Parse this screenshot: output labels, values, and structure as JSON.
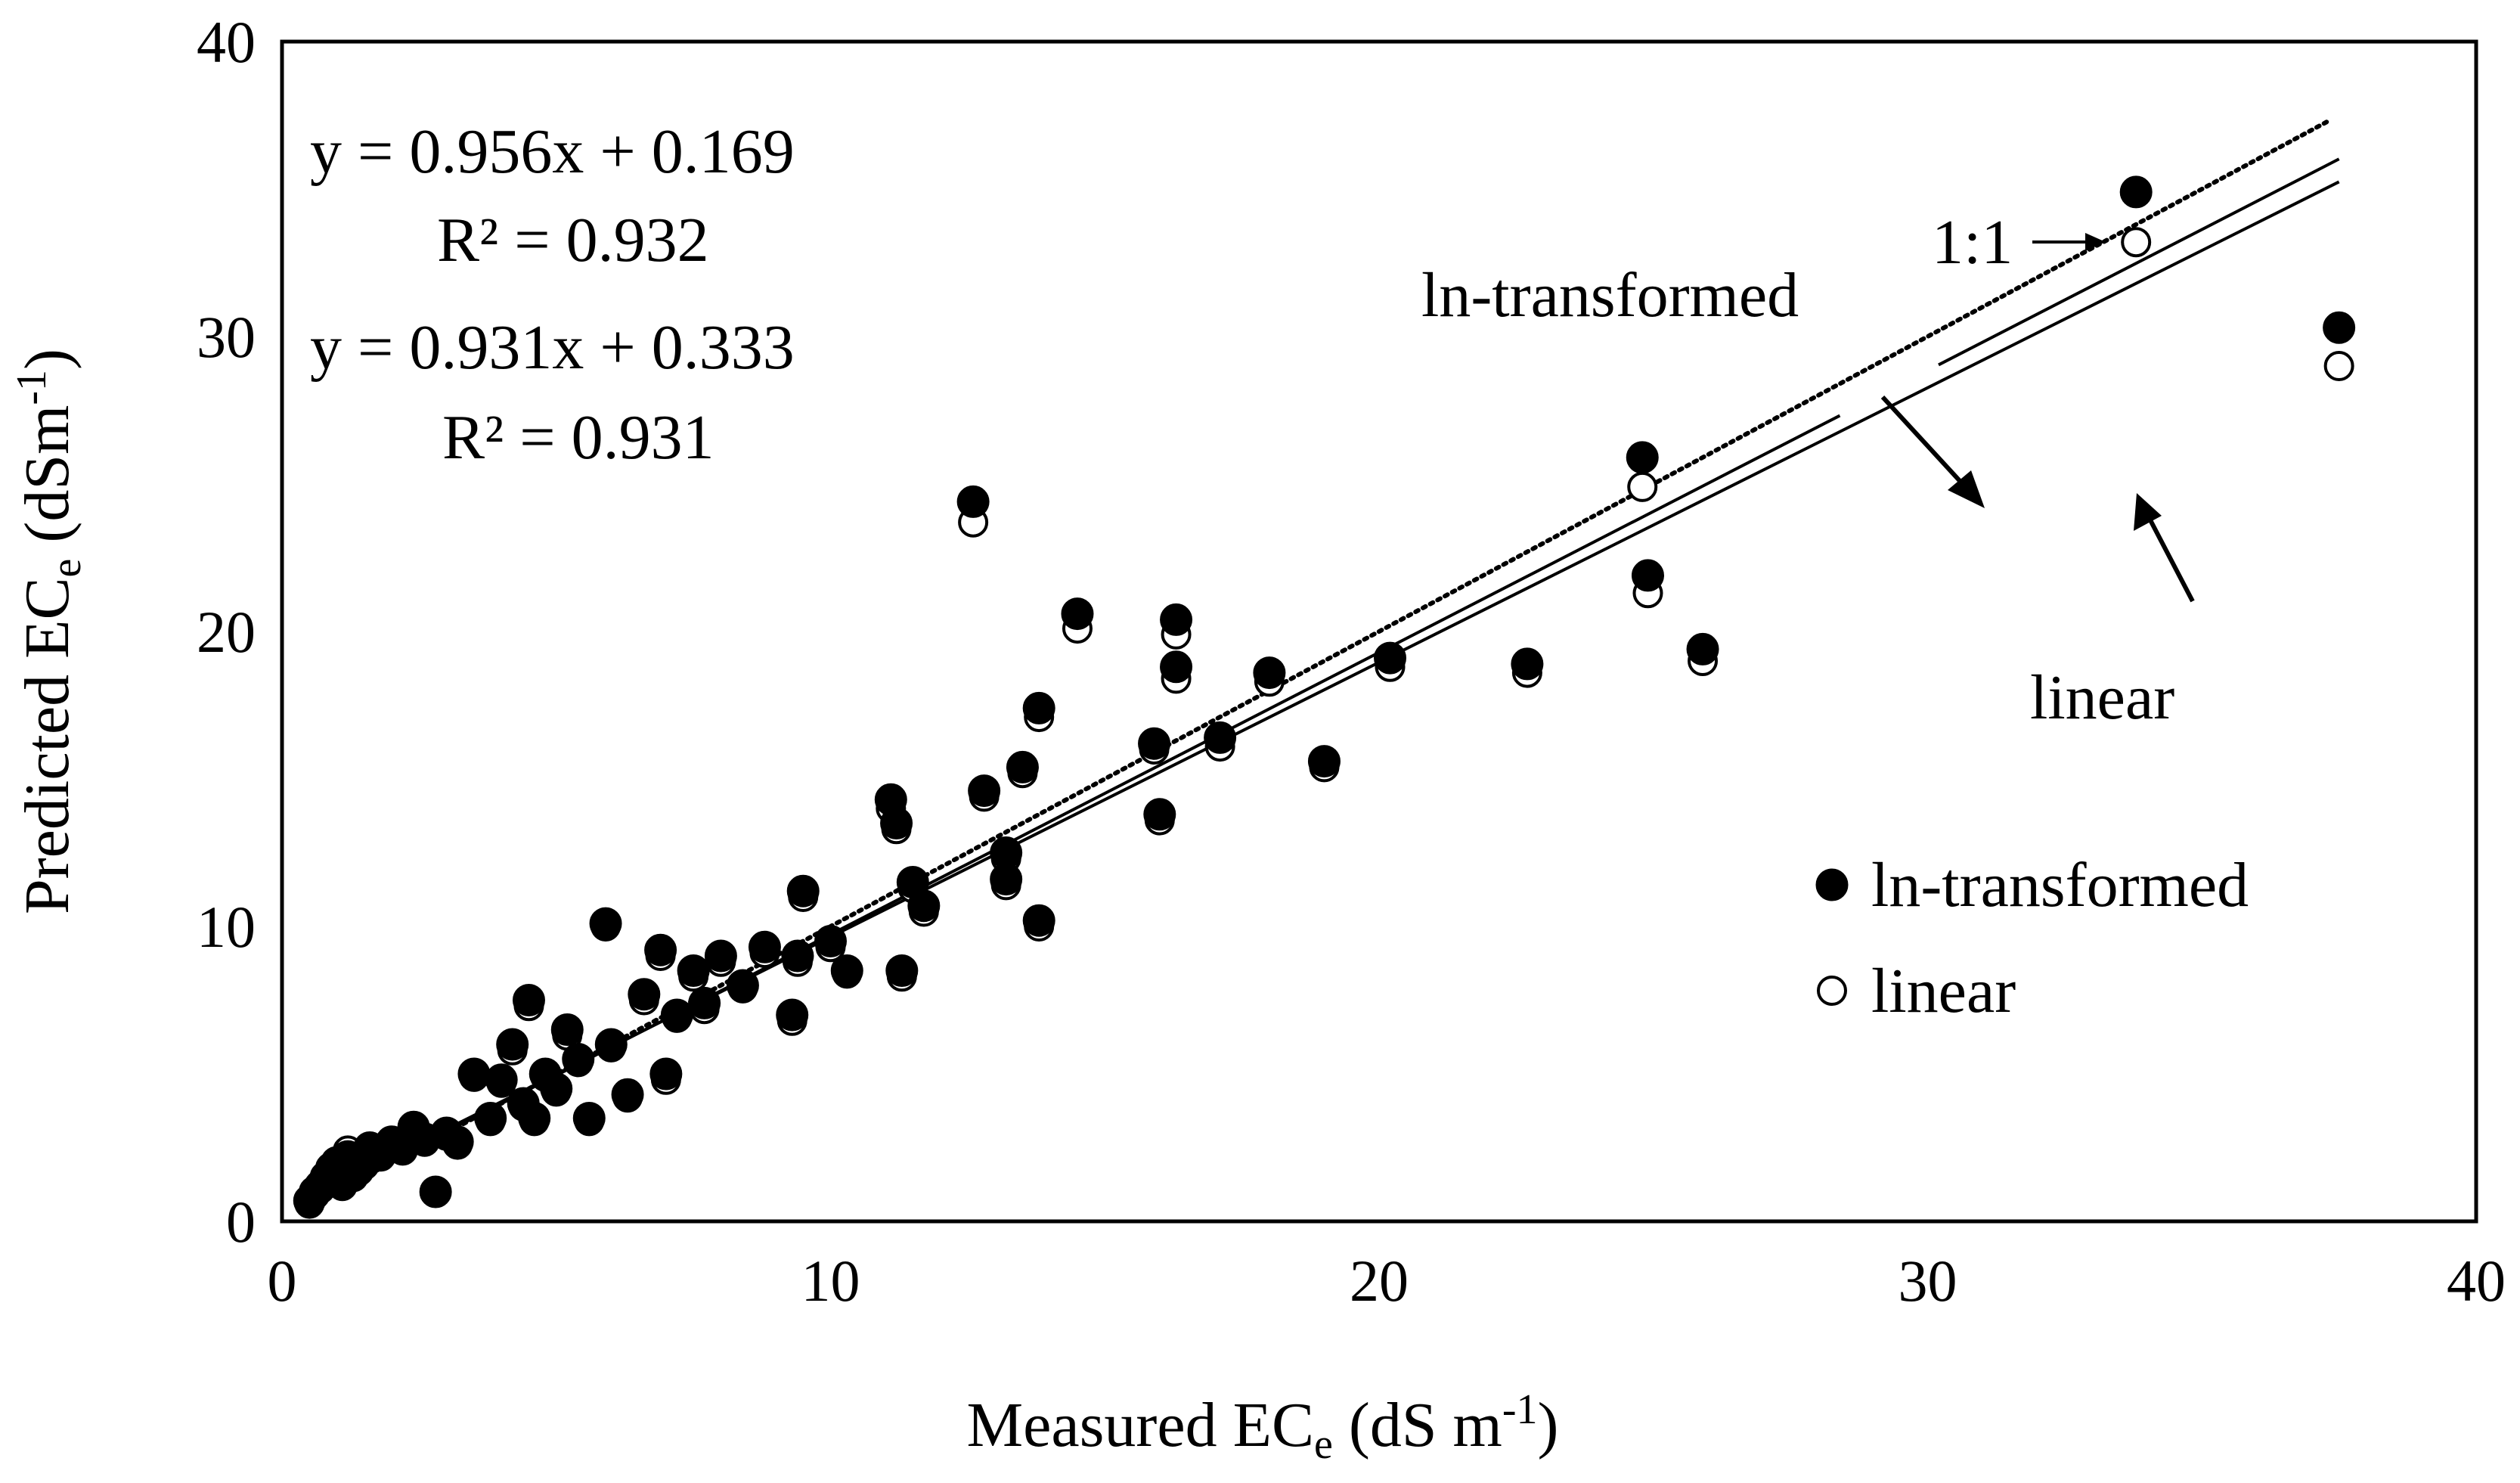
{
  "chart_data": {
    "type": "scatter",
    "xlabel": "Measured EC",
    "xlabel_sub": "e",
    "xlabel_tail": " (dS m",
    "xlabel_sup": "-1",
    "xlabel_close": ")",
    "ylabel": "Predicted EC",
    "ylabel_sub": "e",
    "ylabel_tail": "  (dSm",
    "ylabel_sup": "-1",
    "ylabel_close": ")",
    "xlim": [
      0,
      40
    ],
    "ylim": [
      0,
      40
    ],
    "xticks": [
      "0",
      "10",
      "20",
      "30",
      "40"
    ],
    "yticks": [
      "0",
      "10",
      "20",
      "30",
      "40"
    ],
    "grid": false,
    "legend_position": "lower-right",
    "equations": [
      {
        "line": "y = 0.956x + 0.169",
        "r2": "R² = 0.932"
      },
      {
        "line": "y = 0.931x + 0.333",
        "r2": "R² = 0.931"
      }
    ],
    "annotations": {
      "one_to_one": "1:1",
      "ln_transformed": "ln-transformed",
      "linear": "linear"
    },
    "lines": [
      {
        "name": "1:1",
        "slope": 1.0,
        "intercept": 0,
        "style": "dotted"
      },
      {
        "name": "ln-transformed",
        "slope": 0.956,
        "intercept": 0.169,
        "style": "solid"
      },
      {
        "name": "linear",
        "slope": 0.931,
        "intercept": 0.333,
        "style": "solid"
      }
    ],
    "series": [
      {
        "name": "ln-transformed",
        "marker": "filled-circle",
        "x": [
          0.5,
          0.6,
          0.7,
          0.8,
          0.9,
          1.0,
          1.1,
          1.2,
          1.3,
          1.4,
          1.5,
          1.6,
          1.8,
          2.0,
          2.2,
          2.4,
          2.6,
          2.8,
          3.0,
          3.2,
          3.5,
          3.8,
          4.0,
          4.2,
          4.4,
          4.5,
          4.6,
          4.8,
          5.0,
          5.2,
          5.4,
          5.6,
          5.9,
          6.0,
          6.3,
          6.6,
          6.9,
          7.0,
          7.2,
          7.5,
          7.7,
          8.0,
          8.4,
          8.8,
          9.3,
          9.4,
          9.5,
          10.0,
          10.3,
          11.1,
          11.2,
          11.3,
          11.5,
          11.7,
          12.6,
          12.8,
          13.2,
          13.2,
          13.5,
          13.8,
          13.8,
          14.5,
          15.9,
          16.0,
          16.3,
          16.3,
          17.1,
          18.0,
          19.0,
          20.2,
          22.7,
          24.8,
          24.9,
          25.9,
          33.8,
          37.5
        ],
        "y": [
          0.7,
          1.0,
          1.2,
          1.5,
          1.8,
          2.0,
          1.3,
          2.2,
          1.6,
          1.8,
          2.0,
          2.5,
          2.3,
          2.7,
          2.5,
          3.2,
          2.8,
          1.0,
          3.0,
          2.7,
          5.0,
          3.5,
          4.8,
          6.0,
          4.0,
          7.5,
          3.5,
          5.0,
          4.5,
          6.5,
          5.5,
          3.5,
          10.1,
          6.0,
          4.3,
          7.7,
          9.2,
          5.0,
          7.0,
          8.5,
          7.4,
          9.0,
          8.0,
          9.3,
          7.0,
          9.0,
          11.2,
          9.5,
          8.5,
          14.3,
          13.5,
          8.5,
          11.5,
          10.7,
          24.4,
          14.6,
          12.5,
          11.6,
          15.4,
          17.4,
          10.2,
          20.6,
          16.2,
          13.8,
          20.4,
          18.8,
          16.4,
          18.6,
          15.6,
          19.1,
          18.9,
          25.9,
          21.9,
          19.4,
          34.9,
          30.3
        ]
      },
      {
        "name": "linear",
        "marker": "open-circle",
        "x": [
          0.5,
          0.6,
          0.7,
          0.8,
          0.9,
          1.0,
          1.1,
          1.2,
          1.3,
          1.4,
          1.5,
          1.6,
          1.8,
          2.0,
          2.2,
          2.4,
          2.6,
          2.8,
          3.0,
          3.2,
          3.5,
          3.8,
          4.0,
          4.2,
          4.4,
          4.5,
          4.6,
          4.8,
          5.0,
          5.2,
          5.4,
          5.6,
          5.9,
          6.0,
          6.3,
          6.6,
          6.9,
          7.0,
          7.2,
          7.5,
          7.7,
          8.0,
          8.4,
          8.8,
          9.3,
          9.4,
          9.5,
          10.0,
          10.3,
          11.1,
          11.2,
          11.3,
          11.5,
          11.7,
          12.6,
          12.8,
          13.2,
          13.2,
          13.5,
          13.8,
          13.8,
          14.5,
          15.9,
          16.0,
          16.3,
          16.3,
          17.1,
          18.0,
          19.0,
          20.2,
          22.7,
          24.8,
          24.9,
          25.9,
          33.8,
          37.5
        ],
        "y": [
          0.6,
          0.9,
          1.1,
          1.4,
          1.7,
          1.9,
          1.2,
          2.4,
          1.5,
          1.7,
          1.9,
          2.4,
          2.2,
          2.6,
          2.4,
          3.1,
          2.7,
          1.0,
          2.9,
          2.6,
          4.9,
          3.4,
          4.7,
          5.8,
          3.9,
          7.3,
          3.4,
          4.9,
          4.4,
          6.3,
          5.4,
          3.4,
          10.0,
          5.9,
          4.2,
          7.5,
          9.0,
          4.8,
          6.9,
          8.3,
          7.2,
          8.8,
          7.9,
          9.1,
          6.8,
          8.8,
          11.0,
          9.3,
          8.4,
          14.0,
          13.3,
          8.3,
          11.3,
          10.5,
          23.7,
          14.4,
          12.3,
          11.4,
          15.2,
          17.1,
          10.0,
          20.1,
          16.0,
          13.6,
          19.9,
          18.4,
          16.1,
          18.3,
          15.4,
          18.8,
          18.6,
          24.9,
          21.3,
          19.0,
          33.2,
          29.0
        ]
      }
    ]
  }
}
